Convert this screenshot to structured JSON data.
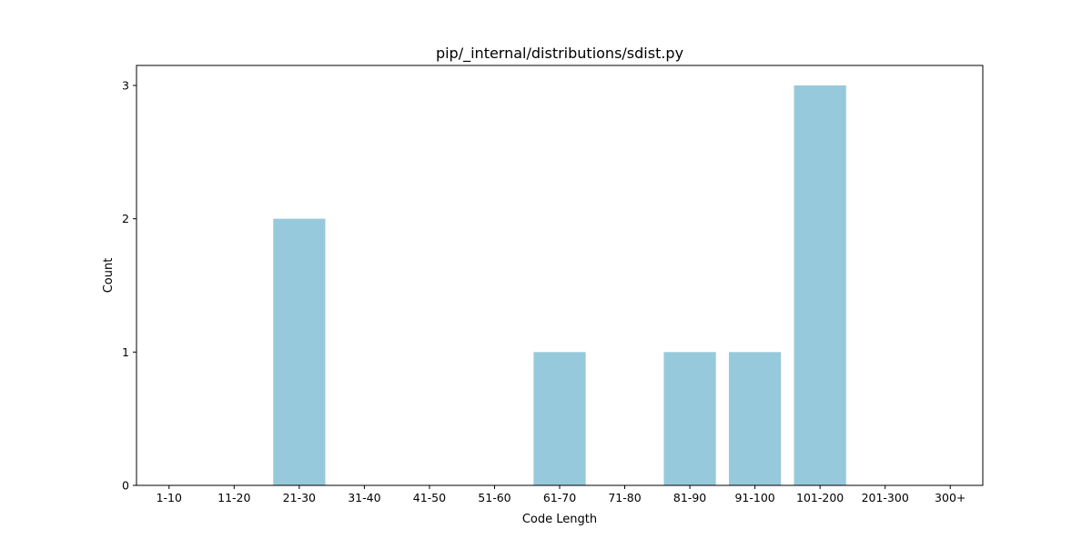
{
  "chart_data": {
    "type": "bar",
    "title": "pip/_internal/distributions/sdist.py",
    "xlabel": "Code Length",
    "ylabel": "Count",
    "categories": [
      "1-10",
      "11-20",
      "21-30",
      "31-40",
      "41-50",
      "51-60",
      "61-70",
      "71-80",
      "81-90",
      "91-100",
      "101-200",
      "201-300",
      "300+"
    ],
    "values": [
      0,
      0,
      2,
      0,
      0,
      0,
      1,
      0,
      1,
      1,
      3,
      0,
      0
    ],
    "ylim": [
      0,
      3.15
    ],
    "yticks": [
      0,
      1,
      2,
      3
    ],
    "bar_color": "#96c9dc",
    "grid": false,
    "legend": "none"
  }
}
